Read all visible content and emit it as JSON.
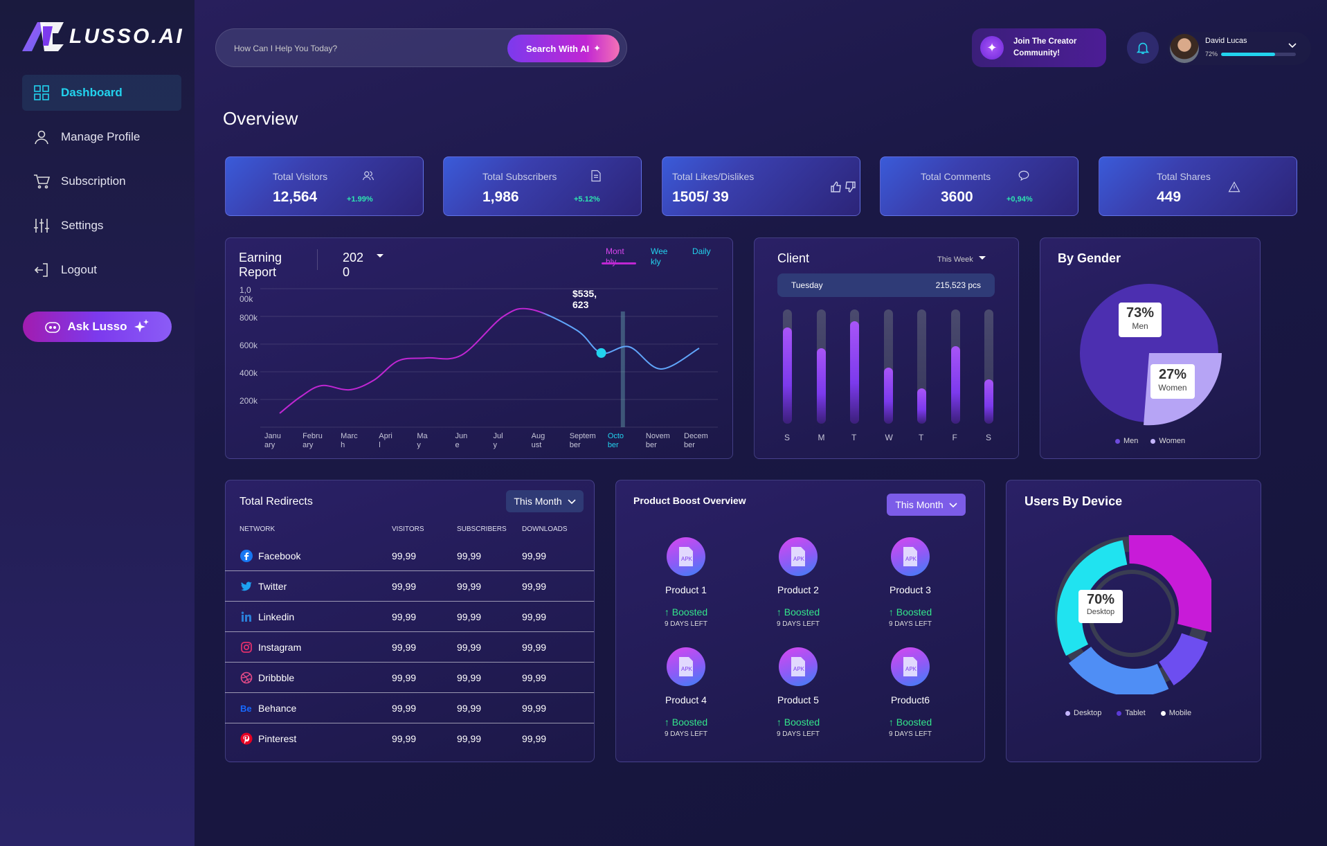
{
  "brand": {
    "name": "LUSSO.AI"
  },
  "sidebar": {
    "items": [
      {
        "label": "Dashboard",
        "icon": "grid-icon",
        "active": true
      },
      {
        "label": "Manage Profile",
        "icon": "user-icon"
      },
      {
        "label": "Subscription",
        "icon": "cart-icon"
      },
      {
        "label": "Settings",
        "icon": "sliders-icon"
      },
      {
        "label": "Logout",
        "icon": "logout-icon"
      }
    ],
    "ask_button": "Ask Lusso"
  },
  "search": {
    "placeholder": "How Can I Help You Today?",
    "button": "Search With AI"
  },
  "creator": {
    "line1": "Join The Creator",
    "line2": "Community!"
  },
  "user": {
    "name": "David Lucas",
    "progress_label": "72%",
    "progress": 0.72
  },
  "overview": {
    "title": "Overview"
  },
  "stats": [
    {
      "label": "Total Visitors",
      "value": "12,564",
      "delta": "+1.99%",
      "icon": "users-icon"
    },
    {
      "label": "Total Subscribers",
      "value": "1,986",
      "delta": "+5.12%",
      "icon": "document-icon"
    },
    {
      "label": "Total Likes/Dislikes",
      "value": "1505/ 39",
      "delta": "",
      "icon": "thumbs-icon"
    },
    {
      "label": "Total Comments",
      "value": "3600",
      "delta": "+0,94%",
      "icon": "comment-icon"
    },
    {
      "label": "Total Shares",
      "value": "449",
      "delta": "",
      "icon": "share-icon"
    }
  ],
  "earning": {
    "title_line1": "Earning",
    "title_line2": "Report",
    "year_line1": "202",
    "year_line2": "0",
    "tabs": [
      {
        "l1": "Mont",
        "l2": "hly",
        "active": true
      },
      {
        "l1": "Wee",
        "l2": "kly"
      },
      {
        "l1": "Daily",
        "l2": ""
      }
    ],
    "tooltip_line1": "$535,",
    "tooltip_line2": "623"
  },
  "chart_data": {
    "type": "line",
    "title": "Earning Report",
    "ytick_labels": [
      "1,0",
      "00k",
      "800k",
      "600k",
      "400k",
      "200k"
    ],
    "x_labels": [
      [
        "Janu",
        "ary"
      ],
      [
        "Febru",
        "ary"
      ],
      [
        "Marc",
        "h"
      ],
      [
        "Apri",
        "l"
      ],
      [
        "Ma",
        "y"
      ],
      [
        "Jun",
        "e"
      ],
      [
        "Jul",
        "y"
      ],
      [
        "Aug",
        "ust"
      ],
      [
        "Septem",
        "ber"
      ],
      [
        "Octo",
        "ber"
      ],
      [
        "Novem",
        "ber"
      ],
      [
        "Decem",
        "ber"
      ]
    ],
    "ylim": [
      0,
      1000000
    ],
    "highlight_index": 9,
    "series": [
      {
        "points": [
          [
            0,
            100000
          ],
          [
            0.6,
            220000
          ],
          [
            1.2,
            300000
          ],
          [
            2,
            270000
          ],
          [
            2.7,
            340000
          ],
          [
            3.4,
            480000
          ],
          [
            4.2,
            500000
          ],
          [
            5.2,
            520000
          ],
          [
            6.4,
            800000
          ],
          [
            7.2,
            850000
          ],
          [
            8.5,
            700000
          ],
          [
            9.2,
            535623
          ],
          [
            10,
            580000
          ],
          [
            10.9,
            420000
          ],
          [
            12,
            570000
          ]
        ]
      }
    ],
    "grid": true
  },
  "client": {
    "title": "Client",
    "period": "This Week",
    "row_day": "Tuesday",
    "row_value": "215,523 pcs",
    "days": [
      "S",
      "M",
      "T",
      "W",
      "T",
      "F",
      "S"
    ],
    "values": [
      0.84,
      0.66,
      0.9,
      0.49,
      0.31,
      0.68,
      0.39
    ]
  },
  "gender": {
    "title": "By Gender",
    "men_pct": "73%",
    "men_label": "Men",
    "women_pct": "27%",
    "women_label": "Women",
    "legend": [
      "Men",
      "Women"
    ],
    "colors": {
      "men": "#4c2fb0",
      "women": "#b6a4f5"
    }
  },
  "redirects": {
    "title": "Total Redirects",
    "period": "This Month",
    "columns": [
      "NETWORK",
      "VISITORS",
      "SUBSCRIBERS",
      "DOWNLOADS"
    ],
    "rows": [
      {
        "network": "Facebook",
        "visitors": "99,99",
        "subscribers": "99,99",
        "downloads": "99,99",
        "icon": "facebook-icon"
      },
      {
        "network": "Twitter",
        "visitors": "99,99",
        "subscribers": "99,99",
        "downloads": "99,99",
        "icon": "twitter-icon"
      },
      {
        "network": "Linkedin",
        "visitors": "99,99",
        "subscribers": "99,99",
        "downloads": "99,99",
        "icon": "linkedin-icon"
      },
      {
        "network": "Instagram",
        "visitors": "99,99",
        "subscribers": "99,99",
        "downloads": "99,99",
        "icon": "instagram-icon"
      },
      {
        "network": "Dribbble",
        "visitors": "99,99",
        "subscribers": "99,99",
        "downloads": "99,99",
        "icon": "dribbble-icon"
      },
      {
        "network": "Behance",
        "visitors": "99,99",
        "subscribers": "99,99",
        "downloads": "99,99",
        "icon": "behance-icon"
      },
      {
        "network": "Pinterest",
        "visitors": "99,99",
        "subscribers": "99,99",
        "downloads": "99,99",
        "icon": "pinterest-icon"
      }
    ]
  },
  "boost": {
    "title": "Product Boost Overview",
    "period": "This Month",
    "products": [
      {
        "name": "Product 1",
        "status": "Boosted",
        "days": "9 DAYS LEFT"
      },
      {
        "name": "Product 2",
        "status": "Boosted",
        "days": "9 DAYS LEFT"
      },
      {
        "name": "Product 3",
        "status": "Boosted",
        "days": "9 DAYS LEFT"
      },
      {
        "name": "Product 4",
        "status": "Boosted",
        "days": "9 DAYS LEFT"
      },
      {
        "name": "Product 5",
        "status": "Boosted",
        "days": "9 DAYS LEFT"
      },
      {
        "name": "Product6",
        "status": "Boosted",
        "days": "9 DAYS LEFT"
      }
    ],
    "icon_text": "APK"
  },
  "devices": {
    "title": "Users By Device",
    "callout_pct": "70%",
    "callout_label": "Desktop",
    "legend": [
      "Desktop",
      "Tablet",
      "Mobile"
    ]
  }
}
